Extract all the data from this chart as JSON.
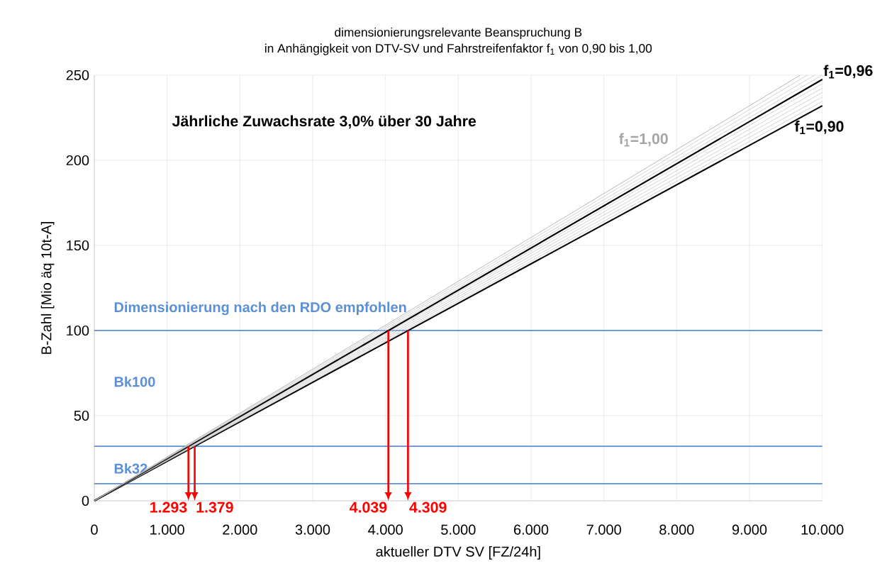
{
  "chart_data": {
    "type": "line",
    "title": "dimensionierungsrelevante Beanspruchung B",
    "subtitle": "in Anhängigkeit von DTV-SV und Fahrstreifenfaktor f$_{1}$ von 0,90 bis 1,00",
    "xlabel": "aktueller DTV SV [FZ/24h]",
    "ylabel": "B-Zahl [Mio äq 10t-A]",
    "xlim": [
      0,
      10000
    ],
    "ylim": [
      0,
      250
    ],
    "xticks": [
      0,
      {
        "value": 1000,
        "label": "1.000"
      },
      {
        "value": 2000,
        "label": "2.000"
      },
      {
        "value": 3000,
        "label": "3.000"
      },
      {
        "value": 4000,
        "label": "4.000"
      },
      {
        "value": 5000,
        "label": "5.000"
      },
      {
        "value": 6000,
        "label": "6.000"
      },
      {
        "value": 7000,
        "label": "7.000"
      },
      {
        "value": 8000,
        "label": "8.000"
      },
      {
        "value": 9000,
        "label": "9.000"
      },
      {
        "value": 10000,
        "label": "10.000"
      }
    ],
    "yticks": [
      0,
      50,
      100,
      150,
      200,
      250
    ],
    "grid": true,
    "marker": "none",
    "line_style": "solid",
    "series": [
      {
        "name": "f$_{1}$=0,90",
        "color": "#000000",
        "x": [
          0,
          10000
        ],
        "values": [
          0,
          232
        ]
      },
      {
        "color": "#c8c8c8",
        "x": [
          0,
          10000
        ],
        "values": [
          0,
          234.6
        ]
      },
      {
        "color": "#c8c8c8",
        "x": [
          0,
          10000
        ],
        "values": [
          0,
          237.2
        ]
      },
      {
        "color": "#c8c8c8",
        "x": [
          0,
          10000
        ],
        "values": [
          0,
          239.8
        ]
      },
      {
        "color": "#c8c8c8",
        "x": [
          0,
          10000
        ],
        "values": [
          0,
          242.4
        ]
      },
      {
        "color": "#c8c8c8",
        "x": [
          0,
          10000
        ],
        "values": [
          0,
          245
        ]
      },
      {
        "name": "f$_{1}$=0,96",
        "color": "#000000",
        "x": [
          0,
          10000
        ],
        "values": [
          0,
          247.5
        ]
      },
      {
        "color": "#c8c8c8",
        "x": [
          0,
          9995
        ],
        "values": [
          0,
          250
        ]
      },
      {
        "color": "#c8c8c8",
        "x": [
          0,
          9894
        ],
        "values": [
          0,
          250
        ]
      },
      {
        "color": "#c8c8c8",
        "x": [
          0,
          9794
        ],
        "values": [
          0,
          250
        ]
      },
      {
        "name": "f$_{1}$=1,00",
        "color": "#a6a6a6",
        "x": [
          0,
          9696
        ],
        "values": [
          0,
          250
        ]
      }
    ],
    "ref_lines": [
      {
        "axis": "y",
        "value": 100,
        "label": "Dimensionierung nach den RDO empfohlen",
        "color": "#5b8fd6"
      },
      {
        "axis": "y",
        "value": 32,
        "label": "Bk100",
        "color": "#5b8fd6"
      },
      {
        "axis": "y",
        "value": 10,
        "label": "Bk32",
        "color": "#5b8fd6"
      }
    ],
    "annotations": [
      "Jährliche Zuwachsrate 3,0% über 30 Jahre",
      {
        "text": "1.293",
        "x": 1293,
        "y": 32
      },
      {
        "text": "1.379",
        "x": 1379,
        "y": 32
      },
      {
        "text": "4.039",
        "x": 4039,
        "y": 100
      },
      {
        "text": "4.309",
        "x": 4309,
        "y": 100
      }
    ]
  }
}
